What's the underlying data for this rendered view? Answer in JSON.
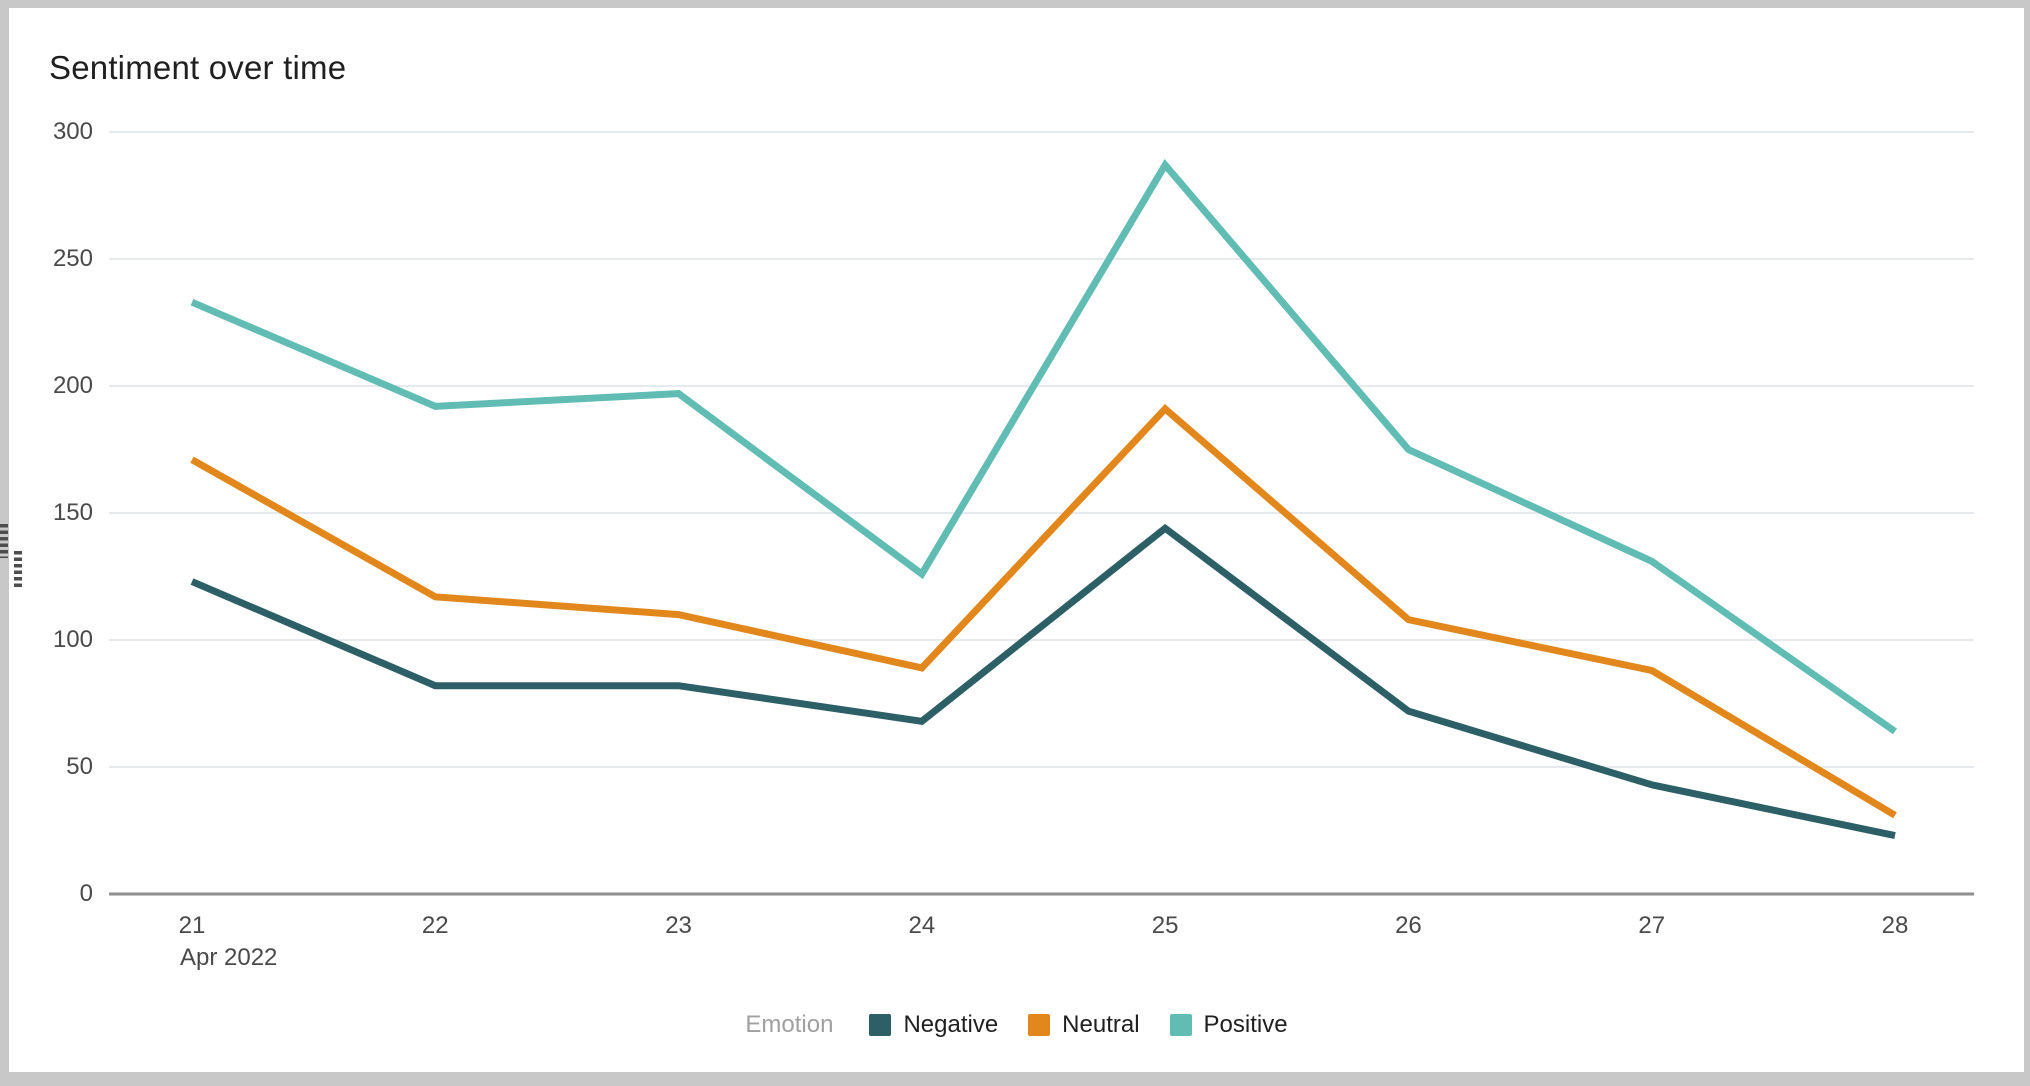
{
  "chart_data": {
    "type": "line",
    "title": "Sentiment over time",
    "x": [
      "21",
      "22",
      "23",
      "24",
      "25",
      "26",
      "27",
      "28"
    ],
    "x_first_sublabel": "Apr 2022",
    "xlabel": "",
    "ylabel": "",
    "ylim": [
      0,
      300
    ],
    "yticks": [
      0,
      50,
      100,
      150,
      200,
      250,
      300
    ],
    "grid": true,
    "legend_title": "Emotion",
    "legend_position": "bottom",
    "series": [
      {
        "name": "Negative",
        "color": "#2d6066",
        "values": [
          123,
          82,
          82,
          68,
          144,
          72,
          43,
          23
        ]
      },
      {
        "name": "Neutral",
        "color": "#e2871c",
        "values": [
          171,
          117,
          110,
          89,
          191,
          108,
          88,
          31
        ]
      },
      {
        "name": "Positive",
        "color": "#61bdb3",
        "values": [
          233,
          192,
          197,
          126,
          287,
          175,
          131,
          64
        ]
      }
    ]
  },
  "colors": {
    "gridline": "#e7eaed",
    "axis_line": "#8f8f8f",
    "tick_label": "#4a4a4a",
    "title_text": "#1f1f1f",
    "legend_title_text": "#a0a0a0",
    "legend_label_text": "#1f1f1f",
    "frame_border": "#c8c8c8",
    "background": "#ffffff",
    "grip": "#4d4d4d"
  }
}
